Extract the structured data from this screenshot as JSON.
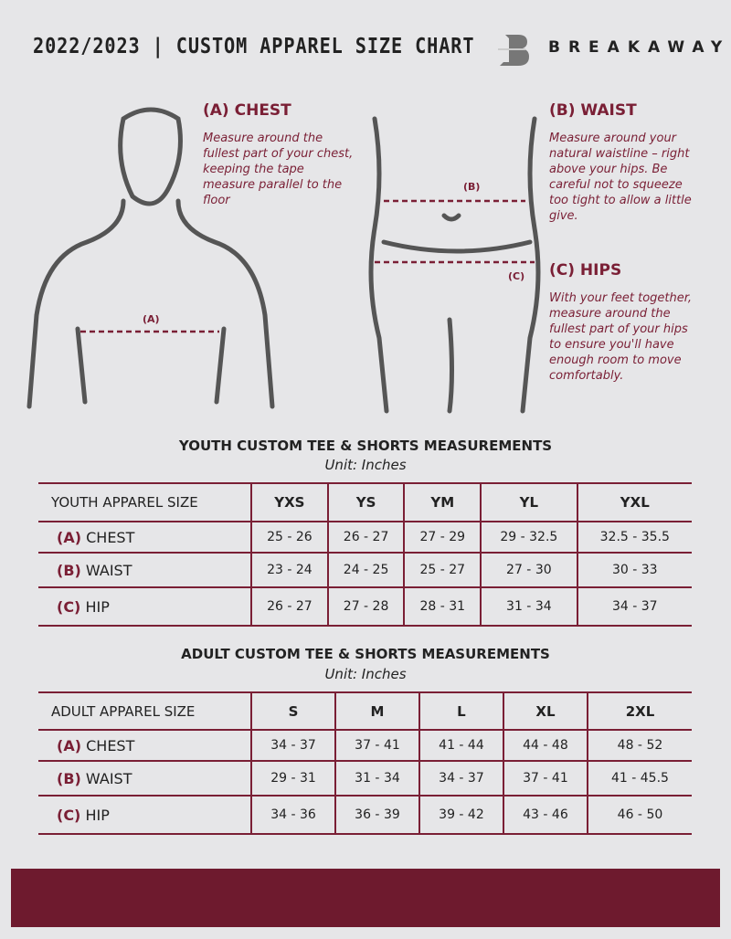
{
  "header": {
    "title": "2022/2023 | CUSTOM APPAREL SIZE CHART",
    "brand": "BREAKAWAY"
  },
  "guide": {
    "chest": {
      "heading": "(A) CHEST",
      "text": "Measure around the fullest part of your chest, keeping the tape measure parallel to the floor",
      "marker": "(A)"
    },
    "waist": {
      "heading": "(B) WAIST",
      "text": "Measure around your natural waistline – right above your hips. Be careful not to squeeze too tight to allow a little give.",
      "marker": "(B)"
    },
    "hips": {
      "heading": "(C) HIPS",
      "text": "With your feet together, measure around the fullest part of your hips to ensure you'll have enough room to move comfortably.",
      "marker": "(C)"
    }
  },
  "youth": {
    "title": "YOUTH CUSTOM TEE & SHORTS MEASUREMENTS",
    "unit": "Unit: Inches",
    "header": "YOUTH APPAREL SIZE",
    "sizes": [
      "YXS",
      "YS",
      "YM",
      "YL",
      "YXL"
    ],
    "rows": [
      {
        "code": "(A)",
        "label": "CHEST",
        "values": [
          "25 - 26",
          "26 - 27",
          "27 - 29",
          "29 - 32.5",
          "32.5 - 35.5"
        ]
      },
      {
        "code": "(B)",
        "label": "WAIST",
        "values": [
          "23 - 24",
          "24 - 25",
          "25 - 27",
          "27 - 30",
          "30 - 33"
        ]
      },
      {
        "code": "(C)",
        "label": "HIP",
        "values": [
          "26 - 27",
          "27 - 28",
          "28 - 31",
          "31 - 34",
          "34 - 37"
        ]
      }
    ]
  },
  "adult": {
    "title": "ADULT CUSTOM TEE & SHORTS MEASUREMENTS",
    "unit": "Unit: Inches",
    "header": "ADULT APPAREL SIZE",
    "sizes": [
      "S",
      "M",
      "L",
      "XL",
      "2XL"
    ],
    "rows": [
      {
        "code": "(A)",
        "label": "CHEST",
        "values": [
          "34 - 37",
          "37 - 41",
          "41 - 44",
          "44 - 48",
          "48 - 52"
        ]
      },
      {
        "code": "(B)",
        "label": "WAIST",
        "values": [
          "29 - 31",
          "31 - 34",
          "34 - 37",
          "37 - 41",
          "41 - 45.5"
        ]
      },
      {
        "code": "(C)",
        "label": "HIP",
        "values": [
          "34 - 36",
          "36 - 39",
          "39 - 42",
          "43 - 46",
          "46 - 50"
        ]
      }
    ]
  },
  "colors": {
    "accent": "#7a1f35",
    "footer": "#6e1a2e",
    "background": "#e6e6e8"
  }
}
